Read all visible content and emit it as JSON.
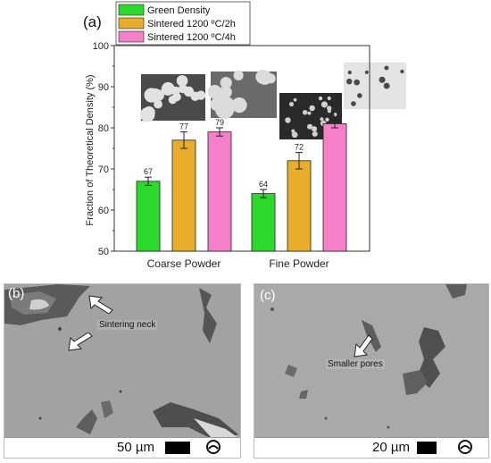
{
  "panel_a": {
    "label": "(a)",
    "legend": [
      {
        "name": "Green Density",
        "color": "#2bd92b"
      },
      {
        "name": "Sintered 1200 ºC/2h",
        "color": "#e8ad2a"
      },
      {
        "name": "Sintered 1200 ºC/4h",
        "color": "#f57fc8"
      }
    ]
  },
  "chart_data": {
    "type": "bar",
    "categories": [
      "Coarse Powder",
      "Fine Powder"
    ],
    "series": [
      {
        "name": "Green Density",
        "values": [
          67,
          64
        ],
        "errors": [
          1.0,
          1.0
        ],
        "labels": [
          "67",
          "64"
        ]
      },
      {
        "name": "Sintered 1200 ºC/2h",
        "values": [
          77,
          72
        ],
        "errors": [
          2.0,
          2.0
        ],
        "labels": [
          "77",
          "72"
        ]
      },
      {
        "name": "Sintered 1200 ºC/4h",
        "values": [
          79,
          81
        ],
        "errors": [
          1.0,
          1.0
        ],
        "labels": [
          "79",
          "81"
        ]
      }
    ],
    "ylabel": "Fraction of Theoretical Density (%)",
    "xlabel": "",
    "ylim": [
      50,
      100
    ],
    "yticks": [
      "50",
      "60",
      "70",
      "80",
      "90",
      "100"
    ],
    "grid": false,
    "legend_position": "top-left"
  },
  "panel_b": {
    "label": "(b)",
    "annotation": "Sintering neck",
    "scale": "50 µm"
  },
  "panel_c": {
    "label": "(c)",
    "annotation": "Smaller pores",
    "scale": "20 µm"
  },
  "colors": {
    "axis": "#333333",
    "sem_gray": "#9e9e9e"
  },
  "icons": [
    "arrow-icon",
    "logo-icon"
  ]
}
